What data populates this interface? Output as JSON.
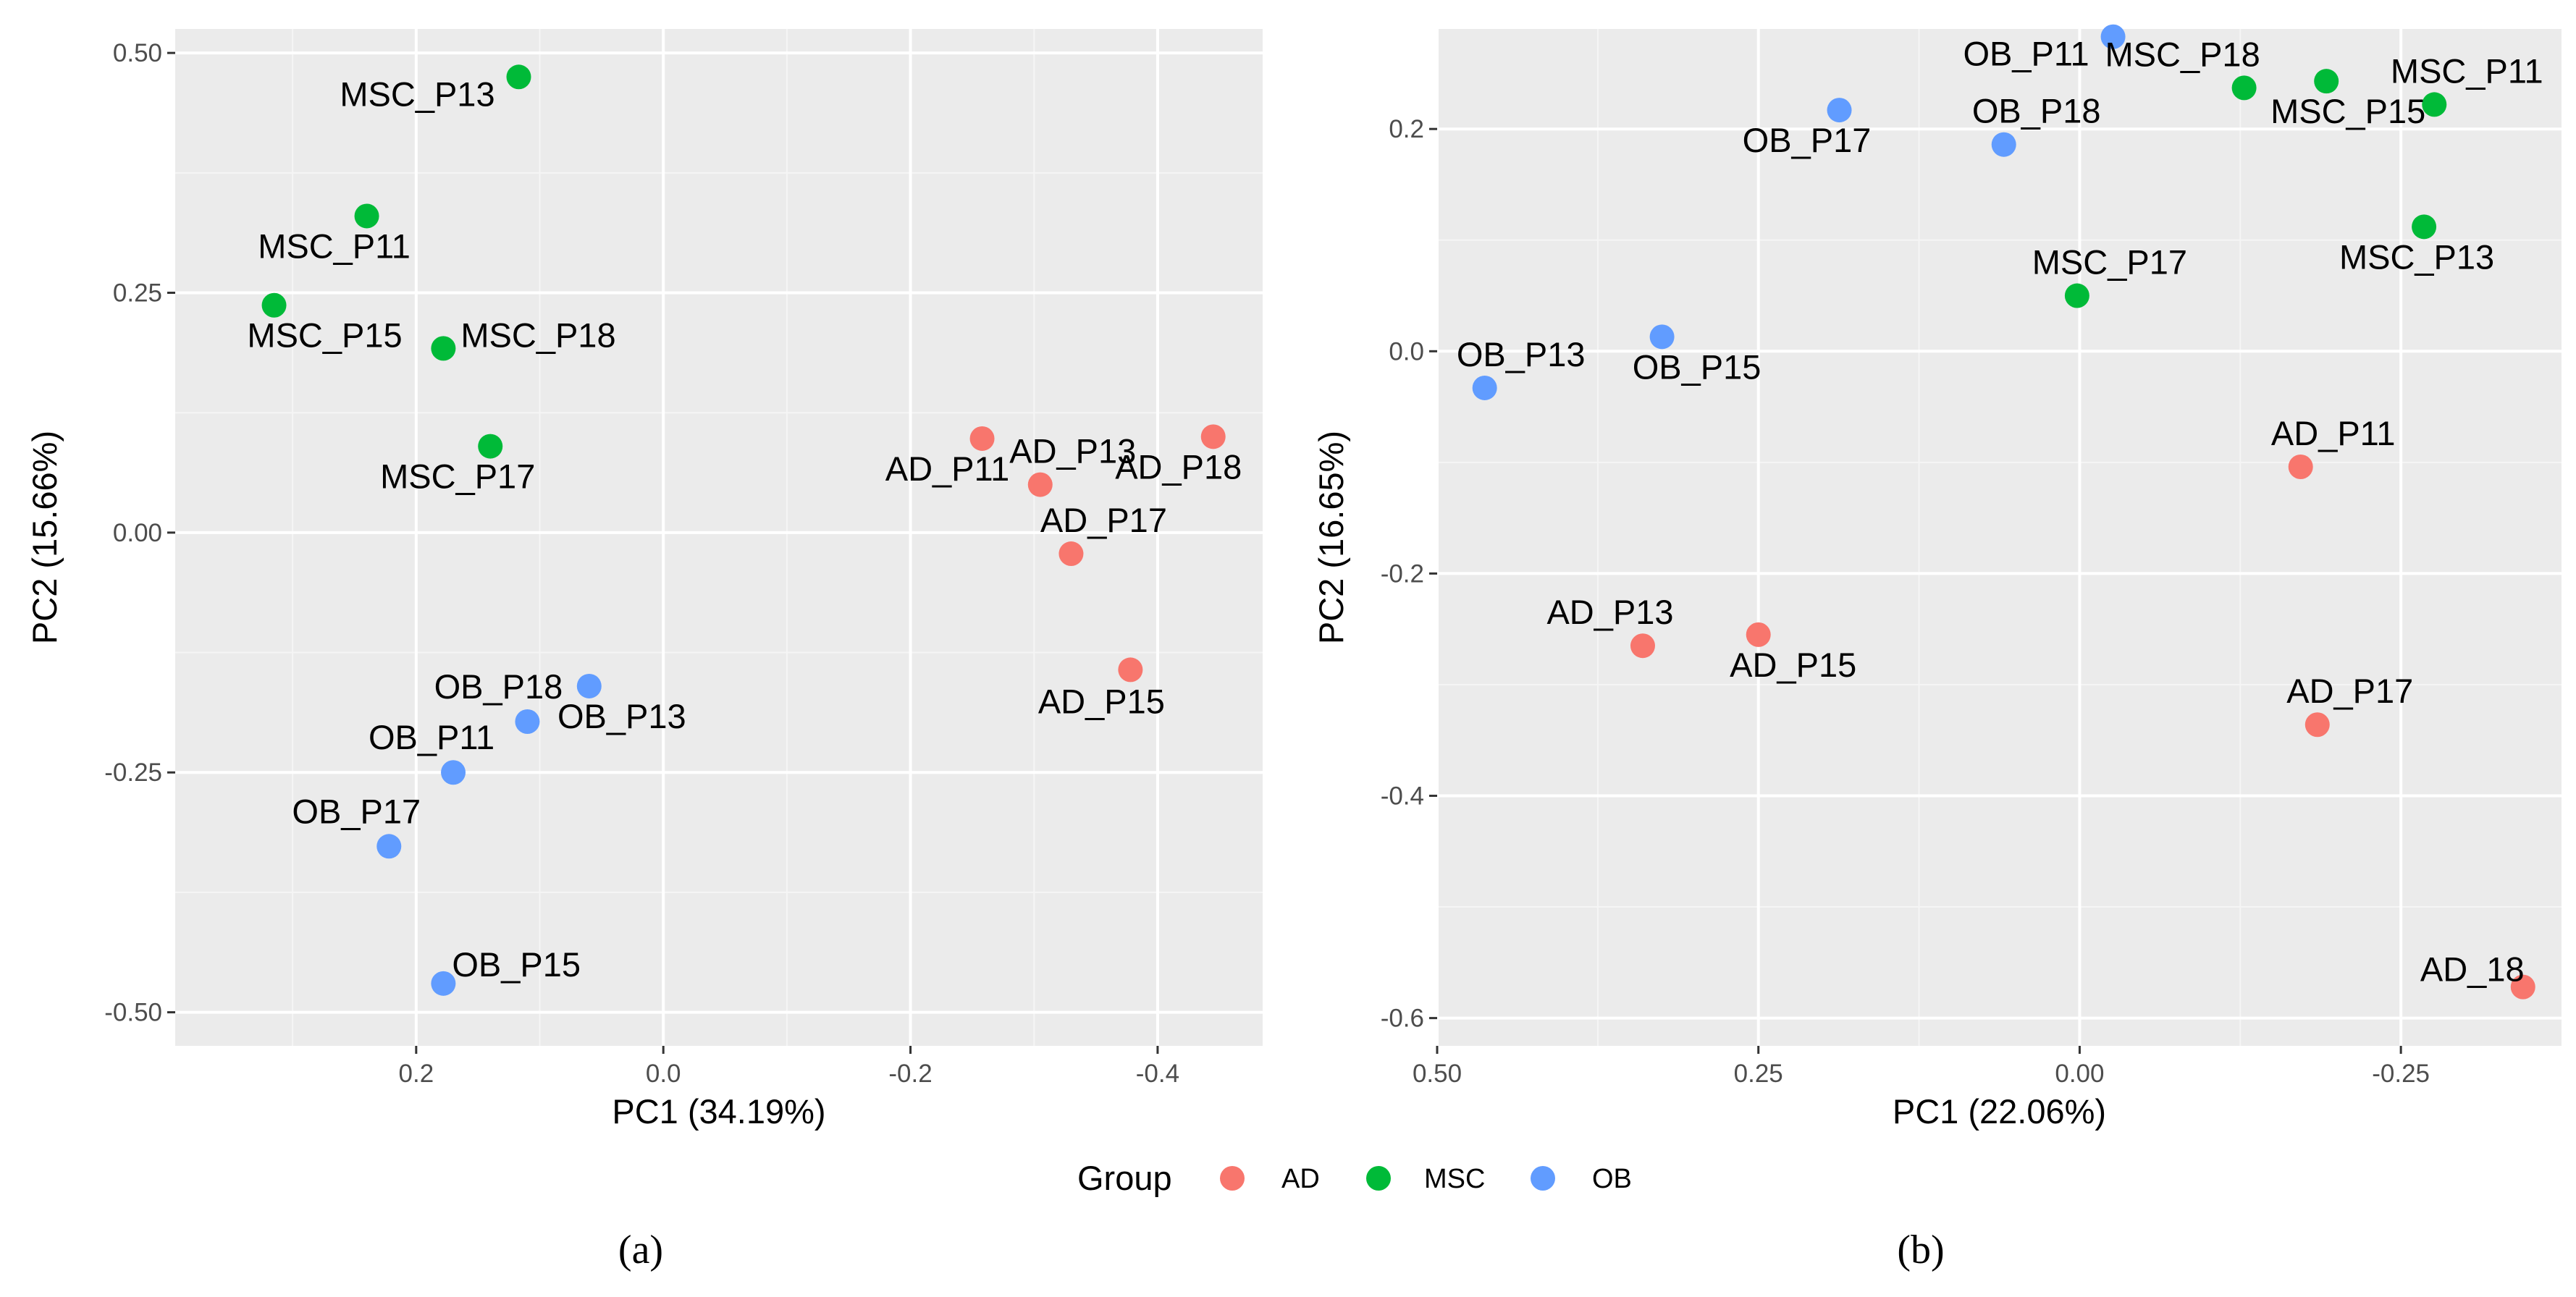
{
  "chart_data": [
    {
      "type": "scatter",
      "title": "",
      "xlabel": "PC1 (34.19%)",
      "ylabel": "PC2 (15.66%)",
      "x_reversed": true,
      "y_reversed": true,
      "xlim": [
        0.395,
        -0.485
      ],
      "ylim": [
        0.525,
        -0.535
      ],
      "x_breaks": [
        0.2,
        0.0,
        -0.2,
        -0.4
      ],
      "x_minor_breaks": [
        0.3,
        0.1,
        -0.1,
        -0.3
      ],
      "x_tick_labels": [
        "0.2",
        "0.0",
        "-0.2",
        "-0.4"
      ],
      "y_breaks": [
        -0.5,
        -0.25,
        0.0,
        0.25,
        0.5
      ],
      "y_minor_breaks": [
        -0.375,
        -0.125,
        0.125,
        0.375
      ],
      "y_tick_labels": [
        "-0.50",
        "-0.25",
        "0.00",
        "0.25",
        "0.50"
      ],
      "grid": true,
      "caption": "(a)",
      "points": [
        {
          "label": "OB_P15",
          "group": "OB",
          "x": 0.178,
          "y": -0.47,
          "anchor": "start",
          "dx": 12,
          "dy": -10
        },
        {
          "label": "OB_P17",
          "group": "OB",
          "x": 0.222,
          "y": -0.327,
          "anchor": "middle",
          "dx": -45,
          "dy": -32
        },
        {
          "label": "OB_P11",
          "group": "OB",
          "x": 0.17,
          "y": -0.25,
          "anchor": "middle",
          "dx": -30,
          "dy": -32
        },
        {
          "label": "OB_P18",
          "group": "OB",
          "x": 0.11,
          "y": -0.197,
          "anchor": "middle",
          "dx": -40,
          "dy": -32
        },
        {
          "label": "OB_P13",
          "group": "OB",
          "x": 0.06,
          "y": -0.16,
          "anchor": "middle",
          "dx": 45,
          "dy": 58
        },
        {
          "label": "AD_P15",
          "group": "AD",
          "x": -0.378,
          "y": -0.143,
          "anchor": "middle",
          "dx": -40,
          "dy": 60
        },
        {
          "label": "AD_P17",
          "group": "AD",
          "x": -0.33,
          "y": -0.022,
          "anchor": "middle",
          "dx": 45,
          "dy": -30
        },
        {
          "label": "AD_P13",
          "group": "AD",
          "x": -0.305,
          "y": 0.05,
          "anchor": "middle",
          "dx": 45,
          "dy": -30
        },
        {
          "label": "AD_P11",
          "group": "AD",
          "x": -0.258,
          "y": 0.098,
          "anchor": "middle",
          "dx": -48,
          "dy": 58
        },
        {
          "label": "AD_P18",
          "group": "AD",
          "x": -0.445,
          "y": 0.1,
          "anchor": "middle",
          "dx": -48,
          "dy": 58
        },
        {
          "label": "MSC_P17",
          "group": "MSC",
          "x": 0.14,
          "y": 0.09,
          "anchor": "middle",
          "dx": -45,
          "dy": 58
        },
        {
          "label": "MSC_P18",
          "group": "MSC",
          "x": 0.178,
          "y": 0.192,
          "anchor": "start",
          "dx": 24,
          "dy": -2
        },
        {
          "label": "MSC_P15",
          "group": "MSC",
          "x": 0.315,
          "y": 0.237,
          "anchor": "middle",
          "dx": 70,
          "dy": 58
        },
        {
          "label": "MSC_P11",
          "group": "MSC",
          "x": 0.24,
          "y": 0.33,
          "anchor": "middle",
          "dx": -45,
          "dy": 58
        },
        {
          "label": "MSC_P13",
          "group": "MSC",
          "x": 0.117,
          "y": 0.475,
          "anchor": "middle",
          "dx": -140,
          "dy": 40
        }
      ]
    },
    {
      "type": "scatter",
      "title": "",
      "xlabel": "PC1 (22.06%)",
      "ylabel": "PC2 (16.65%)",
      "x_reversed": true,
      "y_reversed": true,
      "xlim": [
        0.5,
        -0.375
      ],
      "ylim": [
        0.29,
        -0.625
      ],
      "x_breaks": [
        0.5,
        0.25,
        0.0,
        -0.25
      ],
      "x_minor_breaks": [
        0.375,
        0.125,
        -0.125
      ],
      "x_tick_labels": [
        "0.50",
        "0.25",
        "0.00",
        "-0.25"
      ],
      "y_breaks": [
        -0.6,
        -0.4,
        -0.2,
        0.0,
        0.2
      ],
      "y_minor_breaks": [
        -0.5,
        -0.3,
        -0.1,
        0.1
      ],
      "y_tick_labels": [
        "-0.6",
        "-0.4",
        "-0.2",
        "0.0",
        "0.2"
      ],
      "grid": true,
      "caption": "(b)",
      "points": [
        {
          "label": "AD_18",
          "group": "AD",
          "x": -0.345,
          "y": -0.572,
          "anchor": "middle",
          "dx": -70,
          "dy": -8
        },
        {
          "label": "AD_P17",
          "group": "AD",
          "x": -0.185,
          "y": -0.336,
          "anchor": "middle",
          "dx": 45,
          "dy": -30
        },
        {
          "label": "AD_P13",
          "group": "AD",
          "x": 0.34,
          "y": -0.265,
          "anchor": "middle",
          "dx": -45,
          "dy": -30
        },
        {
          "label": "AD_P15",
          "group": "AD",
          "x": 0.25,
          "y": -0.255,
          "anchor": "middle",
          "dx": 48,
          "dy": 58
        },
        {
          "label": "AD_P11",
          "group": "AD",
          "x": -0.172,
          "y": -0.104,
          "anchor": "middle",
          "dx": 45,
          "dy": -30
        },
        {
          "label": "OB_P13",
          "group": "OB",
          "x": 0.463,
          "y": -0.033,
          "anchor": "middle",
          "dx": 50,
          "dy": -30
        },
        {
          "label": "OB_P15",
          "group": "OB",
          "x": 0.325,
          "y": 0.013,
          "anchor": "middle",
          "dx": 48,
          "dy": 58
        },
        {
          "label": "MSC_P17",
          "group": "MSC",
          "x": 0.002,
          "y": 0.05,
          "anchor": "middle",
          "dx": 45,
          "dy": -30
        },
        {
          "label": "MSC_P13",
          "group": "MSC",
          "x": -0.268,
          "y": 0.112,
          "anchor": "middle",
          "dx": -10,
          "dy": 58
        },
        {
          "label": "OB_P18",
          "group": "OB",
          "x": 0.059,
          "y": 0.186,
          "anchor": "middle",
          "dx": 45,
          "dy": -30
        },
        {
          "label": "OB_P17",
          "group": "OB",
          "x": 0.187,
          "y": 0.217,
          "anchor": "middle",
          "dx": -45,
          "dy": 58
        },
        {
          "label": "MSC_P18",
          "group": "MSC",
          "x": -0.128,
          "y": 0.237,
          "anchor": "middle",
          "dx": -85,
          "dy": -30
        },
        {
          "label": "MSC_P15",
          "group": "MSC",
          "x": -0.192,
          "y": 0.243,
          "anchor": "middle",
          "dx": 30,
          "dy": 58
        },
        {
          "label": "MSC_P11",
          "group": "MSC",
          "x": -0.276,
          "y": 0.222,
          "anchor": "middle",
          "dx": 45,
          "dy": -30
        },
        {
          "label": "OB_P11",
          "group": "OB",
          "x": -0.026,
          "y": 0.283,
          "anchor": "middle",
          "dx": -120,
          "dy": 40
        }
      ]
    }
  ],
  "legend": {
    "title": "Group",
    "position": "bottom",
    "items": [
      {
        "label": "AD",
        "color": "#F8766D"
      },
      {
        "label": "MSC",
        "color": "#00BA38"
      },
      {
        "label": "OB",
        "color": "#619CFF"
      }
    ]
  },
  "colors": {
    "panel_background": "#EBEBEB",
    "grid_major": "#FFFFFF",
    "grid_minor": "#F5F5F5",
    "AD": "#F8766D",
    "MSC": "#00BA38",
    "OB": "#619CFF"
  }
}
